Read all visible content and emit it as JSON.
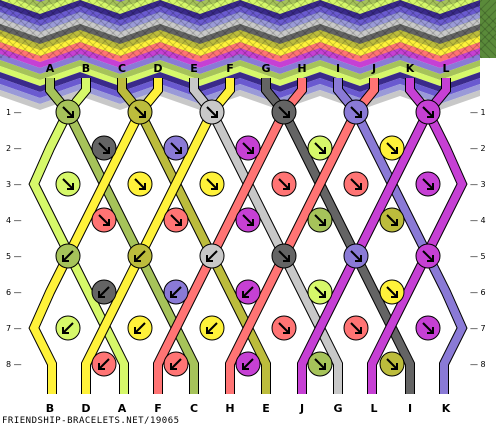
{
  "pattern": {
    "top_labels": [
      "A",
      "B",
      "C",
      "D",
      "E",
      "F",
      "G",
      "H",
      "I",
      "J",
      "K",
      "L"
    ],
    "bottom_labels": [
      "B",
      "D",
      "A",
      "F",
      "C",
      "H",
      "E",
      "J",
      "G",
      "L",
      "I",
      "K"
    ],
    "row_numbers": [
      "1",
      "2",
      "3",
      "4",
      "5",
      "6",
      "7",
      "8"
    ],
    "footer": "FRIENDSHIP-BRACELETS.NET/19065",
    "string_colors": {
      "A": "#a6c35a",
      "B": "#d6f86a",
      "C": "#bcbc3c",
      "D": "#fff23a",
      "E": "#c8c8c8",
      "F": "#fff23a",
      "G": "#646464",
      "H": "#ff7474",
      "I": "#8a7ad6",
      "J": "#ff7474",
      "K": "#c640d4",
      "L": "#c640d4"
    },
    "preview_colors": [
      "#3a2a8a",
      "#6a5ad0",
      "#9a9ad8",
      "#c8c8c8",
      "#646464",
      "#bcbc3c",
      "#fff23a",
      "#ff7474",
      "#c640d4",
      "#8a7ad6",
      "#a6c35a",
      "#d6f86a"
    ],
    "icons": {
      "knot_arrow": "down-right-arrow-icon",
      "knot_arrow_alt": "down-left-arrow-icon"
    }
  }
}
